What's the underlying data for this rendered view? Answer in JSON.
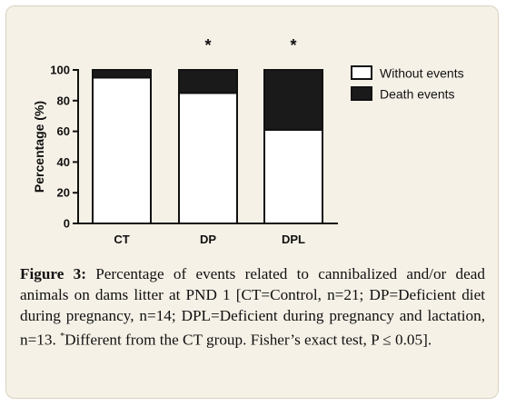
{
  "chart_data": {
    "type": "bar",
    "stacked": true,
    "categories": [
      "CT",
      "DP",
      "DPL"
    ],
    "series": [
      {
        "name": "Without events",
        "values": [
          95,
          85,
          61
        ],
        "color": "#ffffff"
      },
      {
        "name": "Death events",
        "values": [
          5,
          15,
          39
        ],
        "color": "#1a1a1a"
      }
    ],
    "annotations": [
      "",
      "*",
      "*"
    ],
    "ylabel": "Percentage (%)",
    "ylim": [
      0,
      100
    ],
    "yticks": [
      0,
      20,
      40,
      60,
      80,
      100
    ],
    "grid": false,
    "legend_position": "right"
  },
  "caption": {
    "label": "Figure 3:",
    "text_before_mark": " Percentage of events related to cannibalized and/or dead animals on dams litter at PND 1 [CT=Control, n=21; DP=Deficient diet during pregnancy, n=14; DPL=Deficient during pregnancy and lactation, n=13. ",
    "mark": "*",
    "text_after_mark": "Different from the CT group. Fisher’s exact test, P ≤ 0.05]."
  }
}
